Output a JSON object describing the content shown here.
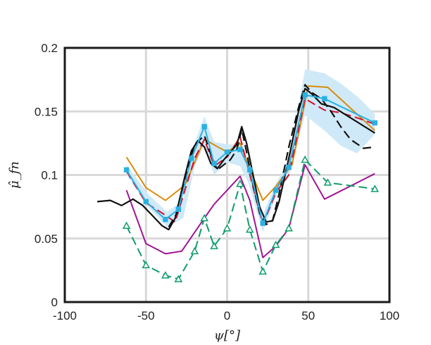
{
  "chart_data": {
    "type": "line",
    "title": "",
    "xlabel": "ψ[°]",
    "ylabel": "μ̂_fn",
    "xlim": [
      -100,
      100
    ],
    "ylim": [
      0,
      0.2
    ],
    "xticks": [
      -100,
      -50,
      0,
      50,
      100
    ],
    "xtick_labels": [
      "-100",
      "-50",
      "0",
      "50",
      "100"
    ],
    "yticks": [
      0,
      0.05,
      0.1,
      0.15,
      0.2
    ],
    "ytick_labels": [
      "0",
      "0.05",
      "0.1",
      "0.15",
      "0.2"
    ],
    "grid": true,
    "band": {
      "color": "#cfe9f8",
      "x": [
        -62,
        -48,
        -37,
        -27,
        -20,
        -14,
        -8,
        0,
        8,
        13,
        22,
        30,
        38,
        48,
        60,
        70,
        80,
        91
      ],
      "upper": [
        0.108,
        0.084,
        0.071,
        0.08,
        0.125,
        0.146,
        0.126,
        0.124,
        0.124,
        0.106,
        0.069,
        0.093,
        0.112,
        0.183,
        0.18,
        0.172,
        0.162,
        0.148
      ],
      "lower": [
        0.1,
        0.074,
        0.059,
        0.066,
        0.106,
        0.124,
        0.1,
        0.11,
        0.107,
        0.094,
        0.055,
        0.083,
        0.099,
        0.147,
        0.135,
        0.123,
        0.117,
        0.132
      ]
    },
    "series": [
      {
        "color": "#d98c0a",
        "style": "solid",
        "marker": "none",
        "x": [
          -62,
          -50,
          -38,
          -26,
          -14,
          0,
          8,
          14,
          22,
          30,
          40,
          50,
          62,
          91
        ],
        "y": [
          0.114,
          0.09,
          0.08,
          0.092,
          0.128,
          0.118,
          0.125,
          0.105,
          0.08,
          0.091,
          0.108,
          0.17,
          0.169,
          0.135
        ]
      },
      {
        "color": "#a01593",
        "style": "solid",
        "marker": "none",
        "x": [
          -62,
          -50,
          -38,
          -28,
          -14,
          -8,
          0,
          8,
          14,
          22,
          30,
          38,
          48,
          60,
          91
        ],
        "y": [
          0.088,
          0.046,
          0.038,
          0.04,
          0.066,
          0.077,
          0.088,
          0.099,
          0.08,
          0.035,
          0.044,
          0.058,
          0.108,
          0.081,
          0.101
        ]
      },
      {
        "color": "#0f9d6b",
        "style": "dashed",
        "marker": "triangle",
        "x": [
          -62,
          -50,
          -38,
          -30,
          -20,
          -14,
          -8,
          0,
          8,
          14,
          22,
          30,
          38,
          48,
          62,
          91
        ],
        "y": [
          0.06,
          0.029,
          0.021,
          0.018,
          0.04,
          0.066,
          0.044,
          0.058,
          0.093,
          0.057,
          0.024,
          0.045,
          0.058,
          0.112,
          0.094,
          0.089
        ]
      },
      {
        "color": "#d6102f",
        "style": "dashed",
        "marker": "none",
        "x": [
          -62,
          -50,
          -40,
          -32,
          -20,
          -14,
          -8,
          0,
          8,
          14,
          22,
          30,
          38,
          48,
          60,
          70,
          80,
          91
        ],
        "y": [
          0.103,
          0.078,
          0.07,
          0.063,
          0.113,
          0.128,
          0.107,
          0.114,
          0.13,
          0.1,
          0.061,
          0.086,
          0.1,
          0.16,
          0.151,
          0.149,
          0.145,
          0.14
        ]
      },
      {
        "color": "#111111",
        "style": "solid",
        "marker": "none",
        "x": [
          -80,
          -72,
          -65,
          -58,
          -52,
          -46,
          -40,
          -36,
          -32,
          -26,
          -22,
          -18,
          -14,
          -10,
          -6,
          -2,
          2,
          6,
          9,
          12,
          16,
          20,
          24,
          28,
          32,
          38,
          44,
          48,
          52,
          58,
          66,
          76,
          91
        ],
        "y": [
          0.079,
          0.08,
          0.076,
          0.081,
          0.076,
          0.068,
          0.06,
          0.057,
          0.066,
          0.099,
          0.119,
          0.127,
          0.122,
          0.109,
          0.105,
          0.112,
          0.118,
          0.124,
          0.138,
          0.125,
          0.1,
          0.075,
          0.063,
          0.064,
          0.079,
          0.113,
          0.15,
          0.168,
          0.164,
          0.156,
          0.153,
          0.145,
          0.133
        ]
      },
      {
        "color": "#111111",
        "style": "dashed",
        "marker": "none",
        "x": [
          -36,
          -30,
          -24,
          -20,
          -14,
          -10,
          -6,
          -2,
          2,
          6,
          9,
          12,
          16,
          20,
          24,
          28,
          32,
          38,
          44,
          48,
          52,
          58,
          64,
          70,
          76,
          84,
          91
        ],
        "y": [
          0.059,
          0.072,
          0.106,
          0.124,
          0.131,
          0.116,
          0.104,
          0.108,
          0.112,
          0.12,
          0.136,
          0.118,
          0.092,
          0.07,
          0.061,
          0.064,
          0.085,
          0.122,
          0.153,
          0.171,
          0.165,
          0.16,
          0.15,
          0.138,
          0.128,
          0.121,
          0.122
        ]
      },
      {
        "color": "#2ab0e2",
        "style": "solid",
        "marker": "square",
        "x": [
          -62,
          -50,
          -38,
          -30,
          -22,
          -14,
          -8,
          0,
          8,
          14,
          22,
          30,
          38,
          48,
          60,
          91
        ],
        "y": [
          0.104,
          0.079,
          0.065,
          0.073,
          0.113,
          0.138,
          0.109,
          0.118,
          0.12,
          0.104,
          0.062,
          0.088,
          0.106,
          0.163,
          0.16,
          0.141
        ]
      }
    ]
  }
}
